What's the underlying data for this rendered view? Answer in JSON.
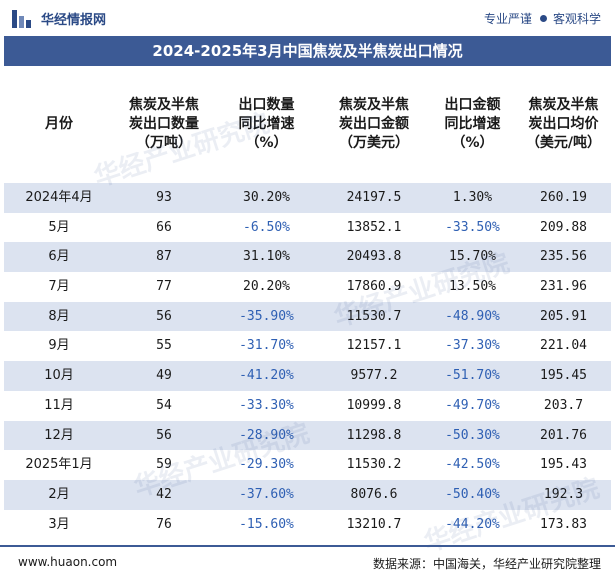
{
  "brand": {
    "name": "华经情报网",
    "tagline_left": "专业严谨",
    "tagline_right": "客观科学"
  },
  "title": "2024-2025年3月中国焦炭及半焦炭出口情况",
  "columns": [
    "月份",
    "焦炭及半焦\n炭出口数量\n（万吨）",
    "出口数量\n同比增速\n（%）",
    "焦炭及半焦\n炭出口金额\n（万美元）",
    "出口金额\n同比增速\n（%）",
    "焦炭及半焦\n炭出口均价\n（美元/吨）"
  ],
  "rows": [
    [
      "2024年4月",
      "93",
      "30.20%",
      "24197.5",
      "1.30%",
      "260.19"
    ],
    [
      "5月",
      "66",
      "-6.50%",
      "13852.1",
      "-33.50%",
      "209.88"
    ],
    [
      "6月",
      "87",
      "31.10%",
      "20493.8",
      "15.70%",
      "235.56"
    ],
    [
      "7月",
      "77",
      "20.20%",
      "17860.9",
      "13.50%",
      "231.96"
    ],
    [
      "8月",
      "56",
      "-35.90%",
      "11530.7",
      "-48.90%",
      "205.91"
    ],
    [
      "9月",
      "55",
      "-31.70%",
      "12157.1",
      "-37.30%",
      "221.04"
    ],
    [
      "10月",
      "49",
      "-41.20%",
      "9577.2",
      "-51.70%",
      "195.45"
    ],
    [
      "11月",
      "54",
      "-33.30%",
      "10999.8",
      "-49.70%",
      "203.7"
    ],
    [
      "12月",
      "56",
      "-28.90%",
      "11298.8",
      "-50.30%",
      "201.76"
    ],
    [
      "2025年1月",
      "59",
      "-29.30%",
      "11530.2",
      "-42.50%",
      "195.43"
    ],
    [
      "2月",
      "42",
      "-37.60%",
      "8076.6",
      "-50.40%",
      "192.3"
    ],
    [
      "3月",
      "76",
      "-15.60%",
      "13210.7",
      "-44.20%",
      "173.83"
    ]
  ],
  "footer": {
    "site": "www.huaon.com",
    "source": "数据来源：中国海关，华经产业研究院整理"
  },
  "watermark": "华经产业研究院",
  "colors": {
    "title_bg": "#3c5a95",
    "row_shade": "#dce3f0",
    "negative": "#2e5fb3"
  }
}
